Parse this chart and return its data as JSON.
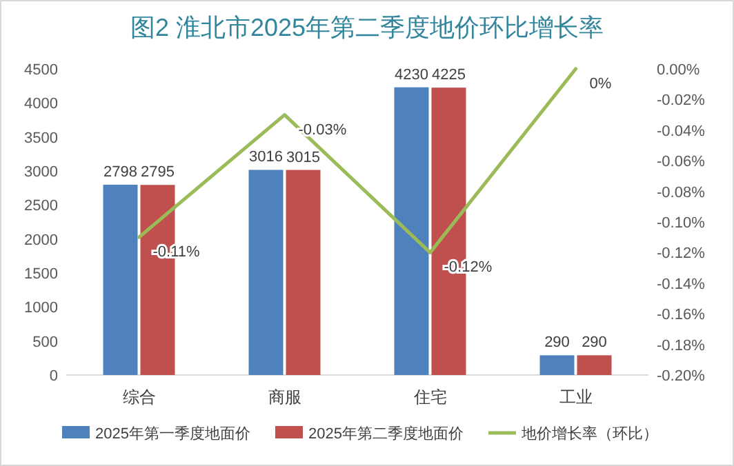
{
  "chart_data": {
    "type": "bar",
    "title": "图2 淮北市2025年第二季度地价环比增长率",
    "categories": [
      "综合",
      "商服",
      "住宅",
      "工业"
    ],
    "series": [
      {
        "name": "2025年第一季度地面价",
        "color": "#4f81bd",
        "values": [
          2798,
          3016,
          4230,
          290
        ]
      },
      {
        "name": "2025年第二季度地面价",
        "color": "#c0504d",
        "values": [
          2795,
          3015,
          4225,
          290
        ]
      },
      {
        "name": "地价增长率（环比）",
        "type": "line",
        "axis": "y2",
        "color": "#9bbb59",
        "values": [
          -0.11,
          -0.03,
          -0.12,
          0
        ],
        "value_labels": [
          "-0.11%",
          "-0.03%",
          "-0.12%",
          "0%"
        ]
      }
    ],
    "ylim": [
      0,
      4500
    ],
    "yticks": [
      0,
      500,
      1000,
      1500,
      2000,
      2500,
      3000,
      3500,
      4000,
      4500
    ],
    "y2lim": [
      -0.2,
      0
    ],
    "y2ticks": [
      {
        "value": 0,
        "label": "0.00%"
      },
      {
        "value": -0.02,
        "label": "-0.02%"
      },
      {
        "value": -0.04,
        "label": "-0.04%"
      },
      {
        "value": -0.06,
        "label": "-0.06%"
      },
      {
        "value": -0.08,
        "label": "-0.08%"
      },
      {
        "value": -0.1,
        "label": "-0.10%"
      },
      {
        "value": -0.12,
        "label": "-0.12%"
      },
      {
        "value": -0.14,
        "label": "-0.14%"
      },
      {
        "value": -0.16,
        "label": "-0.16%"
      },
      {
        "value": -0.18,
        "label": "-0.18%"
      },
      {
        "value": -0.2,
        "label": "-0.20%"
      }
    ],
    "data_labels": true,
    "legend": "bottom"
  }
}
